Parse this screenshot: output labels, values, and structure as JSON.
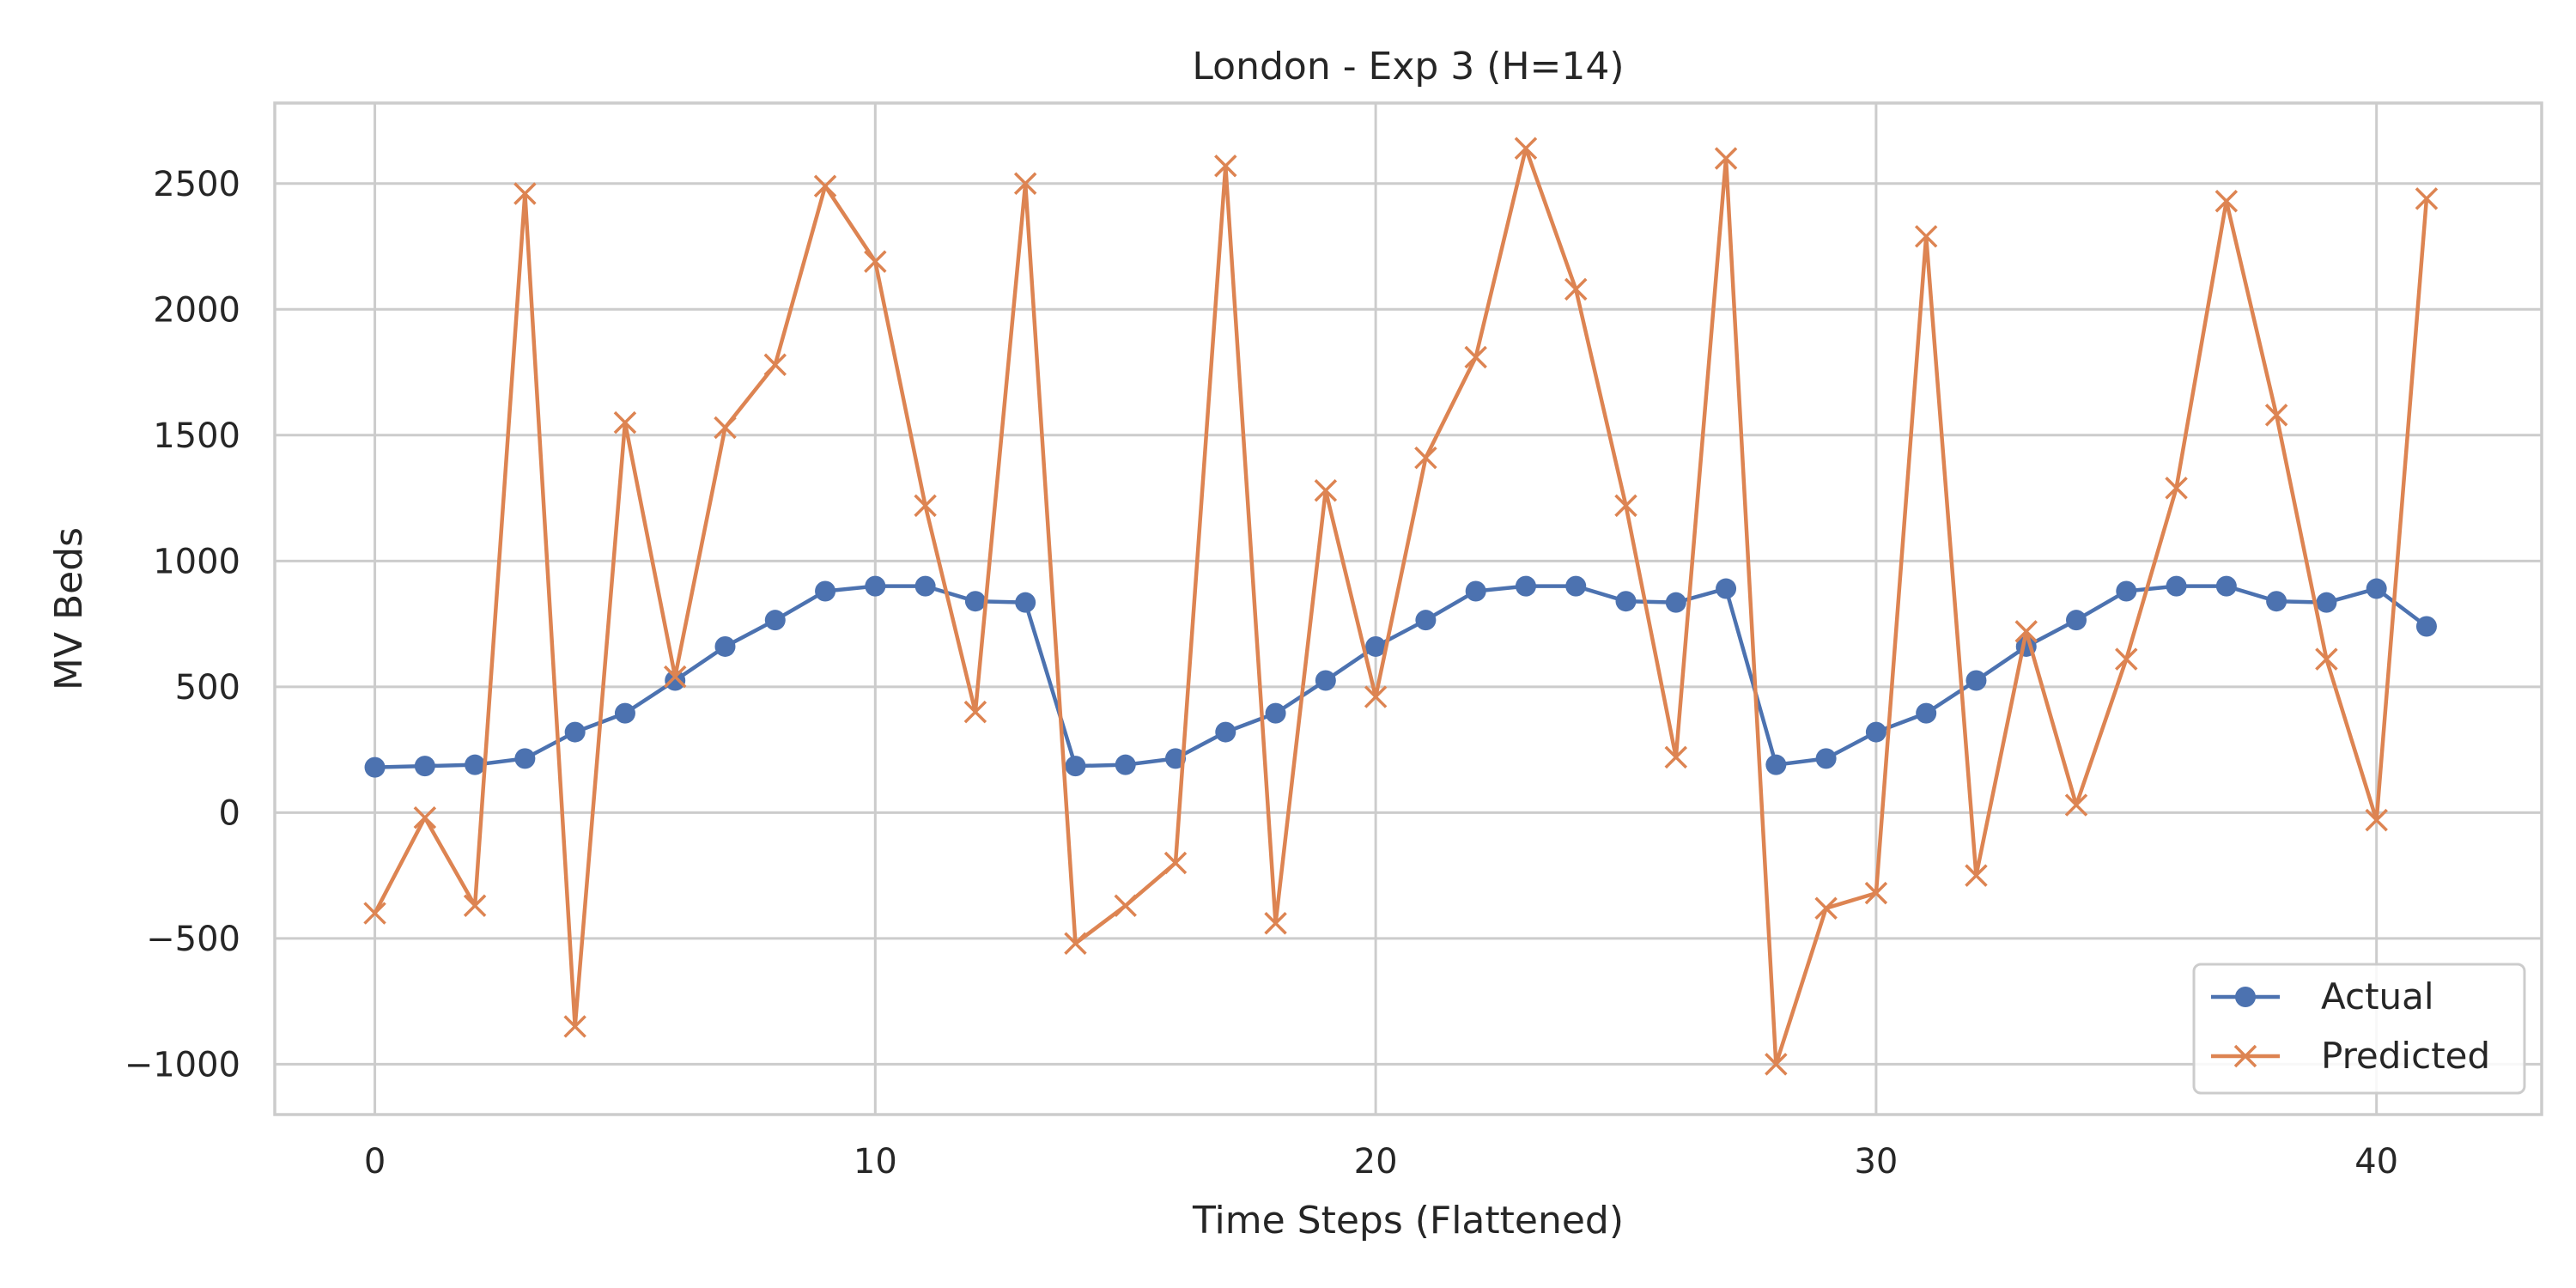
{
  "chart_data": {
    "type": "line",
    "title": "London - Exp 3 (H=14)",
    "xlabel": "Time Steps (Flattened)",
    "ylabel": "MV Beds",
    "xlim": [
      -2,
      43.3
    ],
    "ylim": [
      -1200,
      2820
    ],
    "xticks": [
      0,
      10,
      20,
      30,
      40
    ],
    "yticks": [
      -1000,
      -500,
      0,
      500,
      1000,
      1500,
      2000,
      2500
    ],
    "xtick_labels": [
      "0",
      "10",
      "20",
      "30",
      "40"
    ],
    "ytick_labels": [
      "−1000",
      "−500",
      "0",
      "500",
      "1000",
      "1500",
      "2000",
      "2500"
    ],
    "grid": true,
    "legend_position": "lower-right",
    "x": [
      0,
      1,
      2,
      3,
      4,
      5,
      6,
      7,
      8,
      9,
      10,
      11,
      12,
      13,
      14,
      15,
      16,
      17,
      18,
      19,
      20,
      21,
      22,
      23,
      24,
      25,
      26,
      27,
      28,
      29,
      30,
      31,
      32,
      33,
      34,
      35,
      36,
      37,
      38,
      39,
      40,
      41
    ],
    "series": [
      {
        "name": "Actual",
        "color": "#4c72b0",
        "marker": "circle",
        "values": [
          180,
          185,
          190,
          215,
          320,
          395,
          525,
          660,
          765,
          880,
          900,
          900,
          840,
          835,
          185,
          190,
          215,
          320,
          395,
          525,
          660,
          765,
          880,
          900,
          900,
          840,
          835,
          890,
          190,
          215,
          320,
          395,
          525,
          660,
          765,
          880,
          900,
          900,
          840,
          835,
          890,
          740
        ]
      },
      {
        "name": "Predicted",
        "color": "#dd8452",
        "marker": "x",
        "values": [
          -400,
          -20,
          -370,
          2460,
          -850,
          1550,
          540,
          1530,
          1780,
          2490,
          2190,
          1220,
          400,
          2500,
          -520,
          -370,
          -200,
          2570,
          -440,
          1280,
          460,
          1410,
          1810,
          2640,
          2080,
          1220,
          220,
          2600,
          -1000,
          -380,
          -320,
          2290,
          -250,
          720,
          30,
          610,
          1290,
          2430,
          1580,
          610,
          -30,
          2440
        ]
      }
    ]
  }
}
